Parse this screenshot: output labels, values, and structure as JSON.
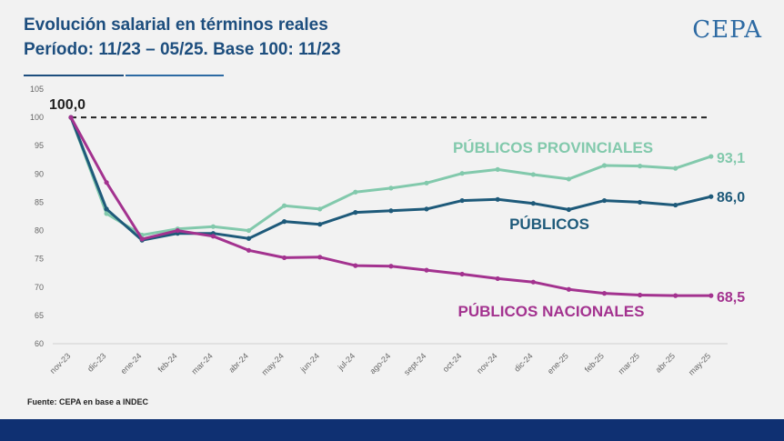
{
  "header": {
    "title_line1": "Evolución salarial en términos reales",
    "title_line2": "Período: 11/23 – 05/25. Base 100: 11/23",
    "logo": "CEPA"
  },
  "footer": {
    "source": "Fuente: CEPA en base a INDEC"
  },
  "colors": {
    "provinciales": "#82c9ac",
    "publicos": "#1e5a7a",
    "nacionales": "#a3328f",
    "baseline": "#222222",
    "footer_bar": "#0f3072"
  },
  "chart_data": {
    "type": "line",
    "title": "Evolución salarial en términos reales",
    "subtitle": "Período: 11/23 – 05/25. Base 100: 11/23",
    "categories": [
      "nov-23",
      "dic-23",
      "ene-24",
      "feb-24",
      "mar-24",
      "abr-24",
      "may-24",
      "jun-24",
      "jul-24",
      "ago-24",
      "sept-24",
      "oct-24",
      "nov-24",
      "dic-24",
      "ene-25",
      "feb-25",
      "mar-25",
      "abr-25",
      "may-25"
    ],
    "ylim": [
      60,
      105
    ],
    "yticks": [
      60,
      65,
      70,
      75,
      80,
      85,
      90,
      95,
      100,
      105
    ],
    "baseline": {
      "value": 100,
      "label": "100,0"
    },
    "series": [
      {
        "key": "provinciales",
        "name": "PÚBLICOS PROVINCIALES",
        "end_label": "93,1",
        "values": [
          100,
          83.0,
          79.2,
          80.3,
          80.7,
          80.0,
          84.4,
          83.8,
          86.8,
          87.5,
          88.4,
          90.1,
          90.8,
          89.9,
          89.1,
          91.5,
          91.4,
          91.0,
          93.1
        ]
      },
      {
        "key": "publicos",
        "name": "PÚBLICOS",
        "end_label": "86,0",
        "values": [
          100,
          83.8,
          78.3,
          79.5,
          79.5,
          78.6,
          81.6,
          81.1,
          83.2,
          83.5,
          83.8,
          85.3,
          85.5,
          84.8,
          83.7,
          85.3,
          85.0,
          84.5,
          86.0
        ]
      },
      {
        "key": "nacionales",
        "name": "PÚBLICOS NACIONALES",
        "end_label": "68,5",
        "values": [
          100,
          88.5,
          78.5,
          80.0,
          79.0,
          76.5,
          75.2,
          75.3,
          73.8,
          73.7,
          73.0,
          72.3,
          71.5,
          70.9,
          69.6,
          68.9,
          68.6,
          68.5,
          68.5
        ]
      }
    ],
    "grid": false,
    "legend": "inline labels"
  }
}
